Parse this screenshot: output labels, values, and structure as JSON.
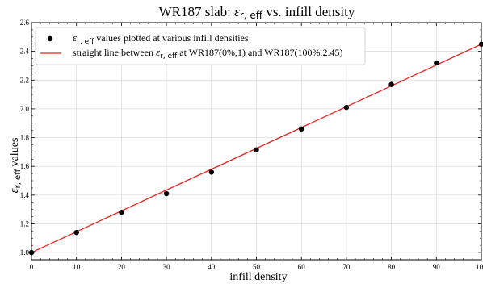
{
  "chart_data": {
    "type": "scatter",
    "title_main": "WR187 slab: ",
    "title_symbol": "ε",
    "title_sub": "r, eff",
    "title_tail": " vs. infill density",
    "xlabel": "infill density",
    "ylabel_symbol": "ε",
    "ylabel_sub": "r, eff",
    "ylabel_tail": " values",
    "xlim": [
      0,
      100
    ],
    "ylim": [
      0.95,
      2.6
    ],
    "xticks": [
      0,
      10,
      20,
      30,
      40,
      50,
      60,
      70,
      80,
      90,
      100
    ],
    "yticks": [
      1.0,
      1.2,
      1.4,
      1.6,
      1.8,
      2.0,
      2.2,
      2.4,
      2.6
    ],
    "grid": true,
    "legend_position": "top-left",
    "scatter": {
      "legend_symbol": "ε",
      "legend_sub": "r, eff",
      "legend_tail": "  values plotted at various infill densities",
      "color": "#000000",
      "x": [
        0,
        10,
        20,
        30,
        40,
        50,
        60,
        70,
        80,
        90,
        100
      ],
      "y": [
        1.0,
        1.14,
        1.28,
        1.41,
        1.56,
        1.715,
        1.86,
        2.01,
        2.17,
        2.32,
        2.45
      ]
    },
    "line": {
      "legend_head": "straight line between ",
      "legend_symbol": "ε",
      "legend_sub": "r, eff",
      "legend_tail": " at WR187(0%,1) and WR187(100%,2.45)",
      "color": "#e8231f",
      "x": [
        0,
        100
      ],
      "y": [
        1.0,
        2.45
      ]
    }
  }
}
